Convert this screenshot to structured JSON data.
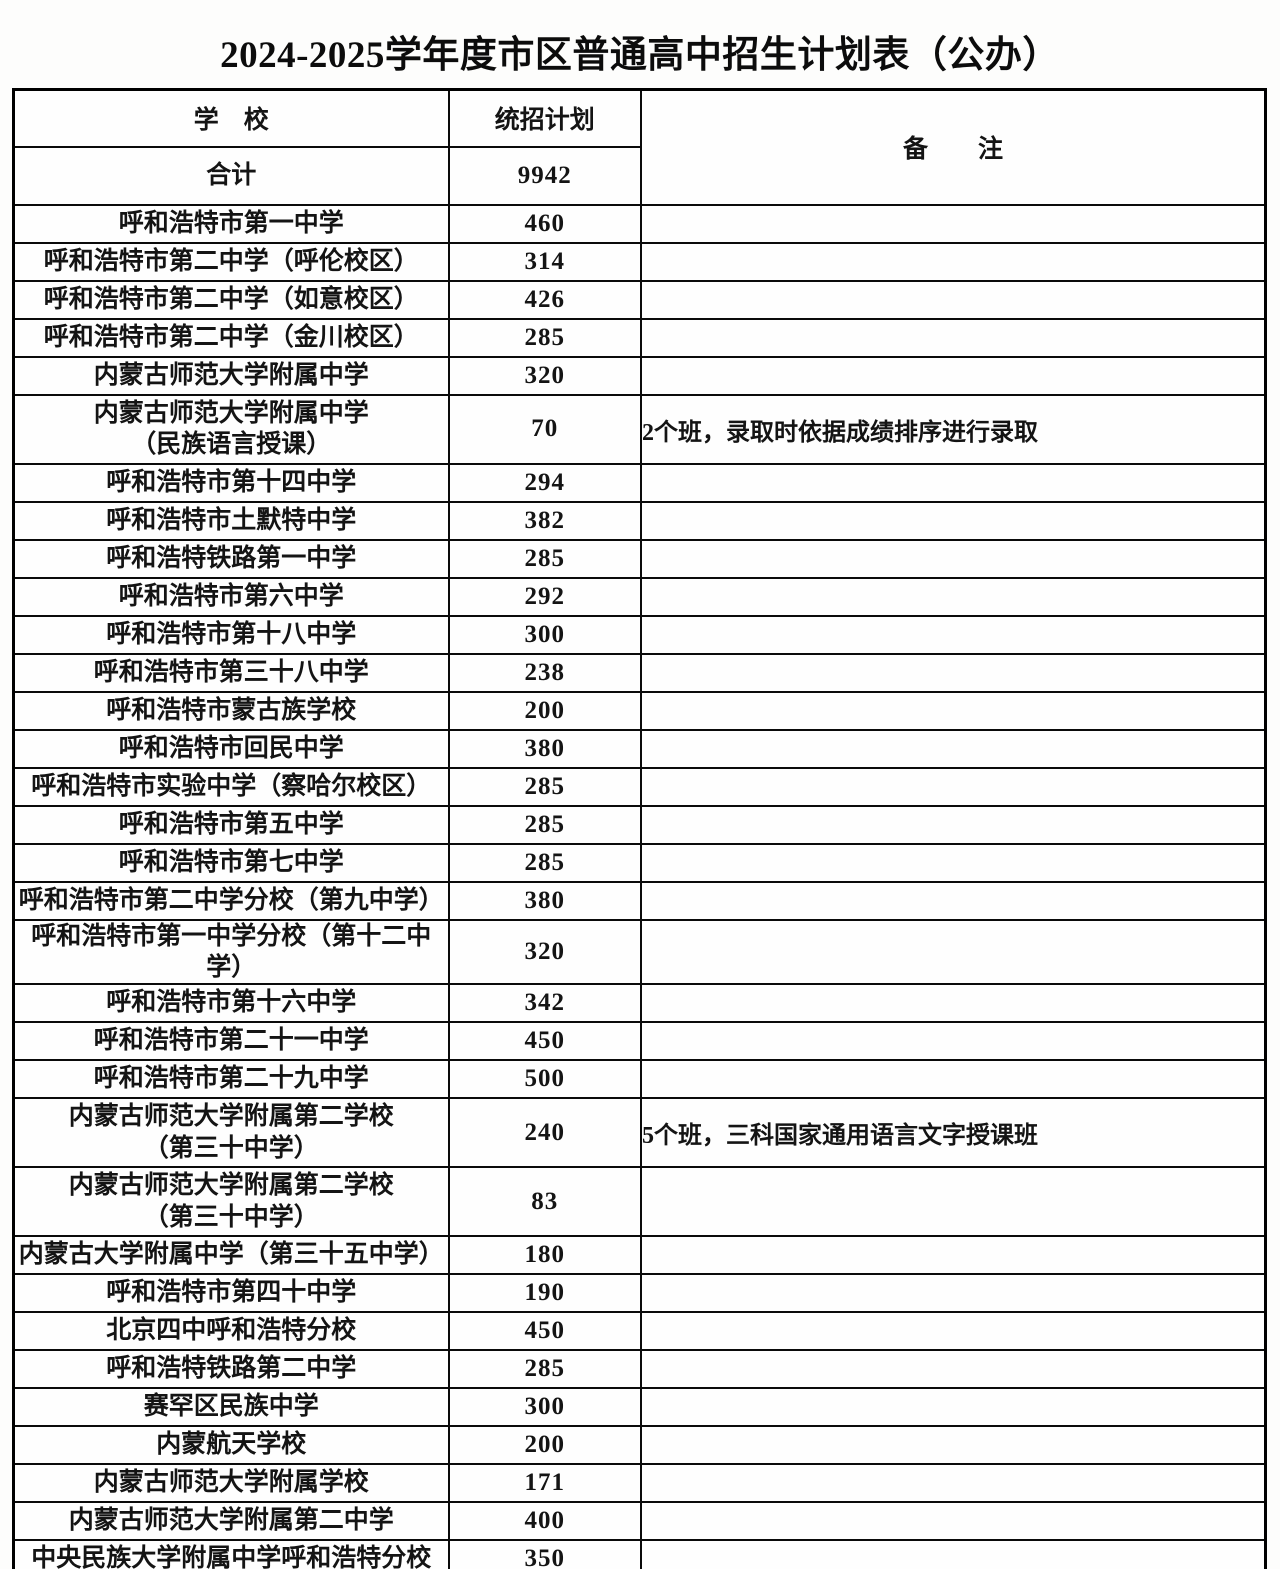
{
  "title": "2024-2025学年度市区普通高中招生计划表（公办）",
  "table": {
    "headers": {
      "school": "学　校",
      "plan": "统招计划",
      "remark": "备　　注"
    },
    "total_row": {
      "school": "合计",
      "plan": "9942",
      "remark": ""
    },
    "rows": [
      {
        "school": "呼和浩特市第一中学",
        "school2": "",
        "plan": "460",
        "remark": ""
      },
      {
        "school": "呼和浩特市第二中学（呼伦校区）",
        "school2": "",
        "plan": "314",
        "remark": ""
      },
      {
        "school": "呼和浩特市第二中学（如意校区）",
        "school2": "",
        "plan": "426",
        "remark": ""
      },
      {
        "school": "呼和浩特市第二中学（金川校区）",
        "school2": "",
        "plan": "285",
        "remark": ""
      },
      {
        "school": "内蒙古师范大学附属中学",
        "school2": "",
        "plan": "320",
        "remark": ""
      },
      {
        "school": "内蒙古师范大学附属中学",
        "school2": "（民族语言授课）",
        "plan": "70",
        "remark": "2个班，录取时依据成绩排序进行录取"
      },
      {
        "school": "呼和浩特市第十四中学",
        "school2": "",
        "plan": "294",
        "remark": ""
      },
      {
        "school": "呼和浩特市土默特中学",
        "school2": "",
        "plan": "382",
        "remark": ""
      },
      {
        "school": "呼和浩特铁路第一中学",
        "school2": "",
        "plan": "285",
        "remark": ""
      },
      {
        "school": "呼和浩特市第六中学",
        "school2": "",
        "plan": "292",
        "remark": ""
      },
      {
        "school": "呼和浩特市第十八中学",
        "school2": "",
        "plan": "300",
        "remark": ""
      },
      {
        "school": "呼和浩特市第三十八中学",
        "school2": "",
        "plan": "238",
        "remark": ""
      },
      {
        "school": "呼和浩特市蒙古族学校",
        "school2": "",
        "plan": "200",
        "remark": ""
      },
      {
        "school": "呼和浩特市回民中学",
        "school2": "",
        "plan": "380",
        "remark": ""
      },
      {
        "school": "呼和浩特市实验中学（察哈尔校区）",
        "school2": "",
        "plan": "285",
        "remark": ""
      },
      {
        "school": "呼和浩特市第五中学",
        "school2": "",
        "plan": "285",
        "remark": ""
      },
      {
        "school": "呼和浩特市第七中学",
        "school2": "",
        "plan": "285",
        "remark": ""
      },
      {
        "school": "呼和浩特市第二中学分校（第九中学）",
        "school2": "",
        "plan": "380",
        "remark": ""
      },
      {
        "school": "呼和浩特市第一中学分校（第十二中学）",
        "school2": "",
        "plan": "320",
        "remark": ""
      },
      {
        "school": "呼和浩特市第十六中学",
        "school2": "",
        "plan": "342",
        "remark": ""
      },
      {
        "school": "呼和浩特市第二十一中学",
        "school2": "",
        "plan": "450",
        "remark": ""
      },
      {
        "school": "呼和浩特市第二十九中学",
        "school2": "",
        "plan": "500",
        "remark": ""
      },
      {
        "school": "内蒙古师范大学附属第二学校",
        "school2": "（第三十中学）",
        "plan": "240",
        "remark": "5个班，三科国家通用语言文字授课班"
      },
      {
        "school": "内蒙古师范大学附属第二学校",
        "school2": "（第三十中学）",
        "plan": "83",
        "remark": ""
      },
      {
        "school": "内蒙古大学附属中学（第三十五中学）",
        "school2": "",
        "plan": "180",
        "remark": ""
      },
      {
        "school": "呼和浩特市第四十中学",
        "school2": "",
        "plan": "190",
        "remark": ""
      },
      {
        "school": "北京四中呼和浩特分校",
        "school2": "",
        "plan": "450",
        "remark": ""
      },
      {
        "school": "呼和浩特铁路第二中学",
        "school2": "",
        "plan": "285",
        "remark": ""
      },
      {
        "school": "赛罕区民族中学",
        "school2": "",
        "plan": "300",
        "remark": ""
      },
      {
        "school": "内蒙航天学校",
        "school2": "",
        "plan": "200",
        "remark": ""
      },
      {
        "school": "内蒙古师范大学附属学校",
        "school2": "",
        "plan": "171",
        "remark": ""
      },
      {
        "school": "内蒙古师范大学附属第二中学",
        "school2": "",
        "plan": "400",
        "remark": ""
      },
      {
        "school": "中央民族大学附属中学呼和浩特分校",
        "school2": "",
        "plan": "350",
        "remark": ""
      }
    ]
  }
}
